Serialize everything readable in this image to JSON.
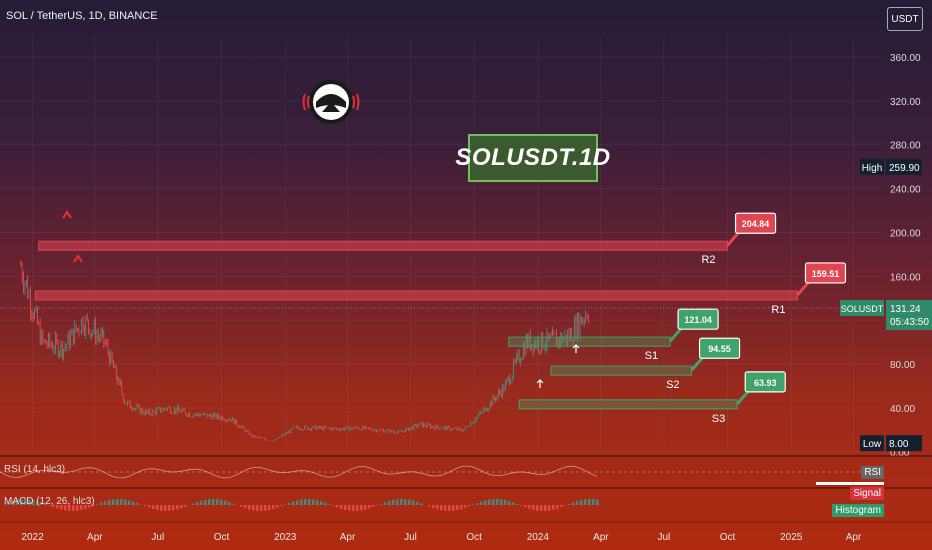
{
  "header": {
    "symbol_line": "SOL / TetherUS, 1D, BINANCE",
    "unit_button": "USDT"
  },
  "title_box": "SOLUSDT.1D",
  "colors": {
    "resistance": "#e04550",
    "support": "#3fa36a",
    "candle_up": "#26a69a",
    "candle_down": "#ef5350"
  },
  "icons": {
    "logo": "astronaut-helmet-icon",
    "arrow": "up-arrow-icon",
    "reversal": "reversal-flag-icon"
  },
  "price_axis": {
    "ticks": [
      "360.00",
      "320.00",
      "280.00",
      "240.00",
      "200.00",
      "160.00",
      "120.00",
      "80.00",
      "40.00",
      "0.00"
    ]
  },
  "time_axis": {
    "ticks": [
      "2022",
      "Apr",
      "Jul",
      "Oct",
      "2023",
      "Apr",
      "Jul",
      "Oct",
      "2024",
      "Apr",
      "Jul",
      "Oct",
      "2025",
      "Apr"
    ]
  },
  "high": {
    "label": "High",
    "value": "259.90"
  },
  "low": {
    "label": "Low",
    "value": "8.00"
  },
  "last_price": {
    "symbol": "SOLUSDT",
    "value": "131.24",
    "countdown": "05:43:50"
  },
  "levels": [
    {
      "name": "R2",
      "value": "204.84",
      "kind": "resistance"
    },
    {
      "name": "R1",
      "value": "159.51",
      "kind": "resistance"
    },
    {
      "name": "S1",
      "value": "121.04",
      "kind": "support"
    },
    {
      "name": "S2",
      "value": "94.55",
      "kind": "support"
    },
    {
      "name": "S3",
      "value": "63.93",
      "kind": "support"
    }
  ],
  "rsi": {
    "label": "RSI (14, hlc3)",
    "badge": "RSI"
  },
  "macd": {
    "label": "MACD (12, 26, hlc3)",
    "signal": "Signal",
    "histogram": "Histogram"
  },
  "chart_data": {
    "type": "candlestick",
    "x": [
      "2021-12",
      "2022-01",
      "2022-02",
      "2022-03",
      "2022-04",
      "2022-05",
      "2022-06",
      "2022-07",
      "2022-08",
      "2022-09",
      "2022-10",
      "2022-11",
      "2022-12",
      "2023-01",
      "2023-02",
      "2023-03",
      "2023-04",
      "2023-05",
      "2023-06",
      "2023-07",
      "2023-08",
      "2023-09",
      "2023-10",
      "2023-11",
      "2023-12",
      "2024-01",
      "2024-02",
      "2024-03"
    ],
    "close": [
      170,
      100,
      95,
      120,
      100,
      45,
      35,
      40,
      35,
      33,
      30,
      14,
      10,
      22,
      22,
      21,
      22,
      20,
      18,
      25,
      22,
      20,
      38,
      60,
      100,
      100,
      105,
      131
    ],
    "ylim": [
      0,
      380
    ],
    "xlim": [
      "2021-11-15",
      "2025-05-15"
    ],
    "high": 259.9,
    "low": 8.0,
    "last": 131.24
  }
}
